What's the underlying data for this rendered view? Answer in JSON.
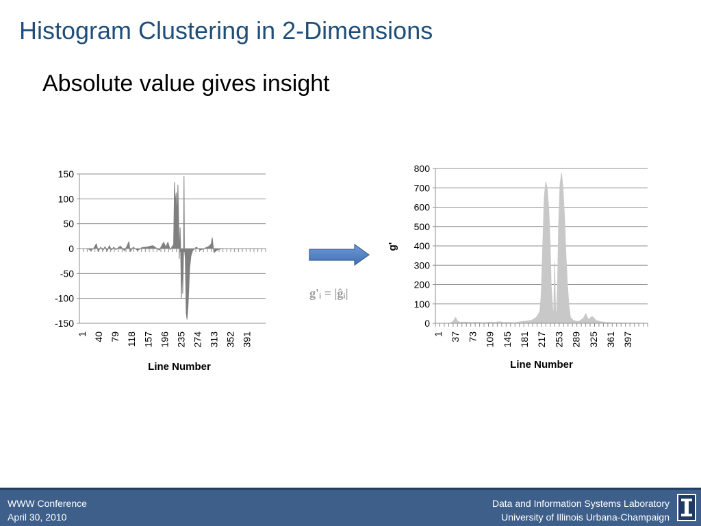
{
  "slide": {
    "title": "Histogram Clustering in 2-Dimensions",
    "subtitle": "Absolute value gives insight",
    "formula": "g'ᵢ = |ĝᵢ|"
  },
  "footer": {
    "left_line1": "WWW Conference",
    "left_line2": "April 30, 2010",
    "right_line1": "Data and Information Systems Laboratory",
    "right_line2": "University of Illinois Urbana-Champaign",
    "logo_icon": "illinois-logo-icon"
  },
  "chart_data": [
    {
      "type": "bar",
      "title": "",
      "xlabel": "Line Number",
      "ylabel": "",
      "ylim": [
        -150,
        150
      ],
      "yticks": [
        150,
        100,
        50,
        0,
        -50,
        -100,
        -150
      ],
      "xticks": [
        "1",
        "40",
        "79",
        "118",
        "157",
        "196",
        "235",
        "274",
        "313",
        "352",
        "391"
      ],
      "x_range": [
        1,
        430
      ],
      "grid": true,
      "color": "#7f7f7f",
      "points": [
        [
          1,
          0
        ],
        [
          20,
          0
        ],
        [
          28,
          -4
        ],
        [
          35,
          2
        ],
        [
          40,
          10
        ],
        [
          42,
          3
        ],
        [
          44,
          -6
        ],
        [
          50,
          3
        ],
        [
          55,
          -4
        ],
        [
          60,
          4
        ],
        [
          65,
          -5
        ],
        [
          70,
          6
        ],
        [
          75,
          -3
        ],
        [
          80,
          3
        ],
        [
          85,
          -2
        ],
        [
          95,
          5
        ],
        [
          105,
          -4
        ],
        [
          110,
          4
        ],
        [
          115,
          14
        ],
        [
          118,
          -6
        ],
        [
          125,
          3
        ],
        [
          135,
          -4
        ],
        [
          145,
          2
        ],
        [
          155,
          3
        ],
        [
          170,
          6
        ],
        [
          185,
          -3
        ],
        [
          195,
          13
        ],
        [
          200,
          3
        ],
        [
          205,
          13
        ],
        [
          210,
          -2
        ],
        [
          218,
          8
        ],
        [
          220,
          133
        ],
        [
          222,
          90
        ],
        [
          224,
          112
        ],
        [
          226,
          60
        ],
        [
          228,
          128
        ],
        [
          230,
          40
        ],
        [
          231,
          -20
        ],
        [
          233,
          42
        ],
        [
          234,
          10
        ],
        [
          236,
          -100
        ],
        [
          238,
          -25
        ],
        [
          239,
          -90
        ],
        [
          241,
          0
        ],
        [
          242,
          145
        ],
        [
          243,
          0
        ],
        [
          245,
          -20
        ],
        [
          247,
          -130
        ],
        [
          249,
          -142
        ],
        [
          251,
          -120
        ],
        [
          253,
          -80
        ],
        [
          255,
          -40
        ],
        [
          258,
          -15
        ],
        [
          262,
          -4
        ],
        [
          270,
          3
        ],
        [
          280,
          -3
        ],
        [
          300,
          5
        ],
        [
          305,
          10
        ],
        [
          307,
          22
        ],
        [
          309,
          6
        ],
        [
          311,
          -8
        ],
        [
          315,
          -5
        ],
        [
          320,
          -2
        ],
        [
          330,
          0
        ],
        [
          430,
          0
        ]
      ]
    },
    {
      "type": "bar",
      "title": "",
      "xlabel": "Line Number",
      "ylabel": "g'",
      "ylim": [
        0,
        800
      ],
      "yticks": [
        800,
        700,
        600,
        500,
        400,
        300,
        200,
        100,
        0
      ],
      "xticks": [
        "1",
        "37",
        "73",
        "109",
        "145",
        "181",
        "217",
        "253",
        "289",
        "325",
        "361",
        "397"
      ],
      "x_range": [
        1,
        430
      ],
      "grid": true,
      "color": "#c8c8c8",
      "points": [
        [
          1,
          0
        ],
        [
          30,
          0
        ],
        [
          36,
          8
        ],
        [
          42,
          30
        ],
        [
          46,
          10
        ],
        [
          52,
          5
        ],
        [
          60,
          6
        ],
        [
          70,
          4
        ],
        [
          85,
          5
        ],
        [
          100,
          3
        ],
        [
          110,
          6
        ],
        [
          120,
          4
        ],
        [
          130,
          8
        ],
        [
          140,
          4
        ],
        [
          150,
          5
        ],
        [
          160,
          3
        ],
        [
          180,
          10
        ],
        [
          195,
          15
        ],
        [
          205,
          30
        ],
        [
          212,
          60
        ],
        [
          215,
          150
        ],
        [
          218,
          400
        ],
        [
          221,
          650
        ],
        [
          224,
          730
        ],
        [
          227,
          700
        ],
        [
          230,
          600
        ],
        [
          233,
          420
        ],
        [
          235,
          200
        ],
        [
          238,
          80
        ],
        [
          240,
          30
        ],
        [
          242,
          315
        ],
        [
          244,
          60
        ],
        [
          246,
          60
        ],
        [
          248,
          200
        ],
        [
          250,
          500
        ],
        [
          253,
          720
        ],
        [
          256,
          775
        ],
        [
          259,
          700
        ],
        [
          262,
          550
        ],
        [
          265,
          350
        ],
        [
          268,
          200
        ],
        [
          271,
          90
        ],
        [
          274,
          30
        ],
        [
          280,
          15
        ],
        [
          290,
          8
        ],
        [
          300,
          25
        ],
        [
          305,
          50
        ],
        [
          310,
          20
        ],
        [
          318,
          35
        ],
        [
          322,
          25
        ],
        [
          326,
          15
        ],
        [
          335,
          8
        ],
        [
          345,
          5
        ],
        [
          360,
          3
        ],
        [
          430,
          0
        ]
      ]
    }
  ]
}
